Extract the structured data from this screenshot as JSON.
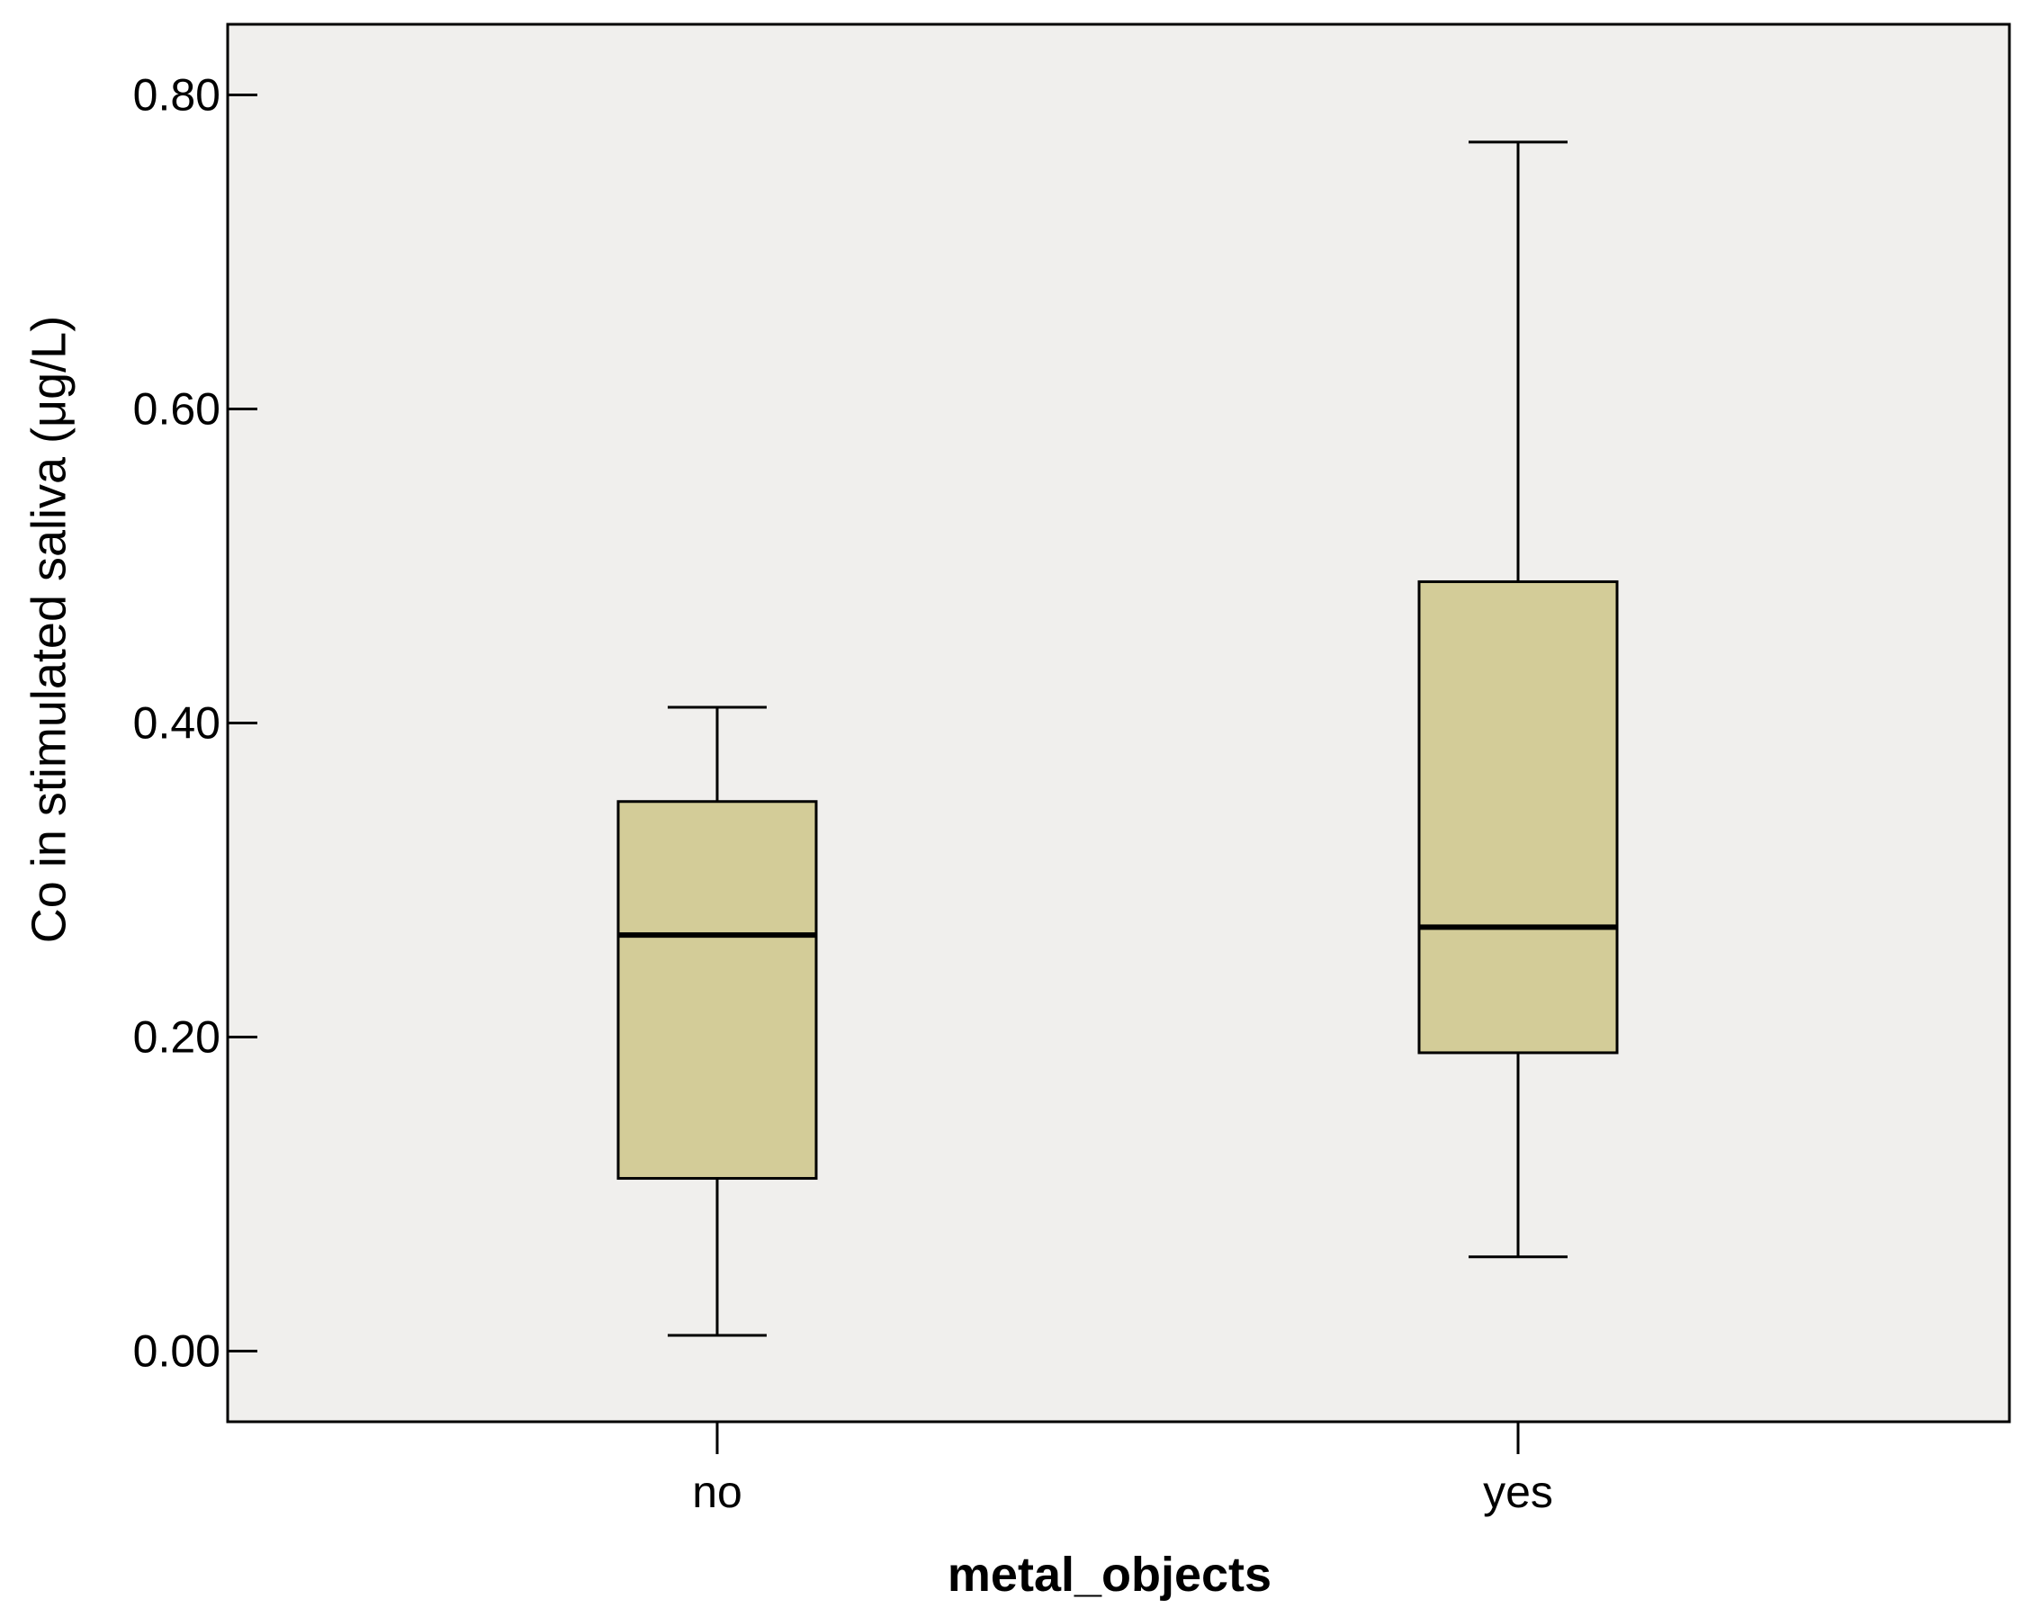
{
  "chart_data": {
    "type": "box",
    "xlabel": "metal_objects",
    "ylabel": "Co in stimulated saliva (μg/L)",
    "categories": [
      "no",
      "yes"
    ],
    "boxes": [
      {
        "category": "no",
        "min": 0.01,
        "q1": 0.11,
        "median": 0.265,
        "q3": 0.35,
        "max": 0.41
      },
      {
        "category": "yes",
        "min": 0.06,
        "q1": 0.19,
        "median": 0.27,
        "q3": 0.49,
        "max": 0.77
      }
    ],
    "yticks": [
      0.0,
      0.2,
      0.4,
      0.6,
      0.8
    ],
    "ytick_labels": [
      "0.00",
      "0.20",
      "0.40",
      "0.60",
      "0.80"
    ],
    "ylim": [
      -0.045,
      0.845
    ],
    "grid": false,
    "legend": "none",
    "colors": {
      "plot_background": "#f0efed",
      "box_fill": "#d3cc98",
      "line": "#000000"
    }
  }
}
